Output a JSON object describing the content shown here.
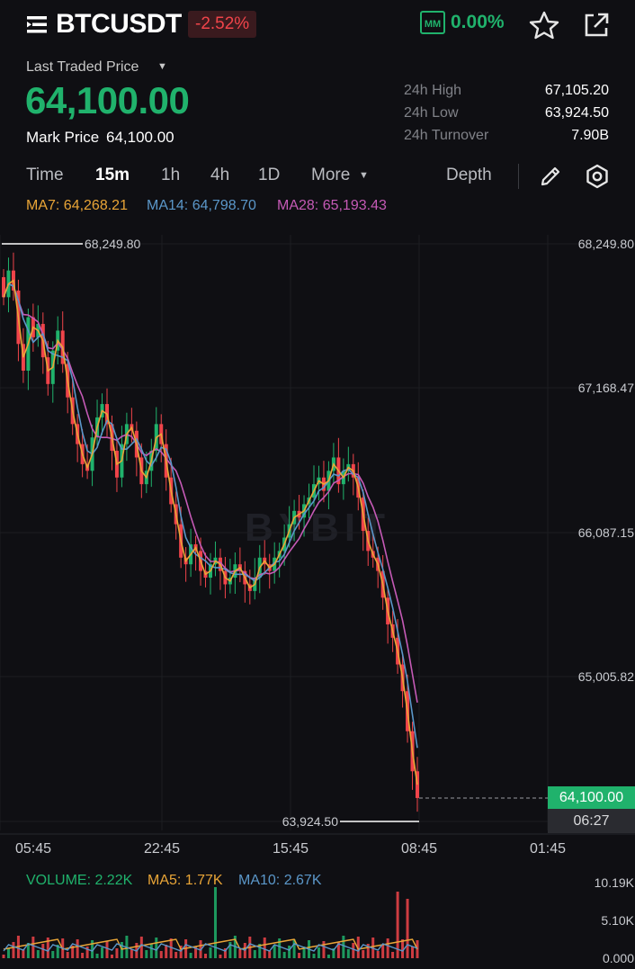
{
  "header": {
    "symbol": "BTCUSDT",
    "change": "-2.52%",
    "mm_badge": "MM",
    "mm_value": "0.00%"
  },
  "price": {
    "last_traded_label": "Last Traded Price",
    "last_price": "64,100.00",
    "mark_label": "Mark Price",
    "mark_value": "64,100.00"
  },
  "stats": [
    {
      "label": "24h High",
      "value": "67,105.20"
    },
    {
      "label": "24h Low",
      "value": "63,924.50"
    },
    {
      "label": "24h Turnover",
      "value": "7.90B"
    }
  ],
  "tabs": {
    "time": "Time",
    "m15": "15m",
    "h1": "1h",
    "h4": "4h",
    "d1": "1D",
    "more": "More",
    "depth": "Depth",
    "active": "15m"
  },
  "ma": {
    "ma7": "MA7: 64,268.21",
    "ma14": "MA14: 64,798.70",
    "ma28": "MA28: 65,193.43"
  },
  "colors": {
    "up": "#20b26c",
    "down": "#f0444a",
    "ma7": "#e9a537",
    "ma14": "#5b97c9",
    "ma28": "#c55ab6"
  },
  "chart_data": {
    "type": "candlestick",
    "price_axis_labels": [
      "68,249.80",
      "67,168.47",
      "66,087.15",
      "65,005.82"
    ],
    "time_axis_labels": [
      "05:45",
      "22:45",
      "15:45",
      "08:45",
      "01:45"
    ],
    "ylim": [
      63924.5,
      68249.8
    ],
    "high_marker": "68,249.80",
    "low_marker": "63,924.50",
    "current_price": "64,100.00",
    "countdown": "06:27",
    "close_series": [
      67850,
      68050,
      67900,
      67500,
      67300,
      67700,
      67550,
      67650,
      67400,
      67200,
      67450,
      67600,
      67350,
      67100,
      66900,
      66750,
      66600,
      66550,
      66800,
      66950,
      67050,
      66900,
      66700,
      66500,
      66750,
      66900,
      66850,
      66650,
      66450,
      66550,
      66700,
      66900,
      66750,
      66500,
      66300,
      66150,
      65900,
      65850,
      66000,
      65950,
      65800,
      65750,
      65850,
      65900,
      65800,
      65700,
      65750,
      65850,
      65800,
      65700,
      65650,
      65750,
      65900,
      65850,
      65800,
      65900,
      65950,
      66050,
      66150,
      66250,
      66200,
      66300,
      66350,
      66450,
      66500,
      66400,
      66550,
      66650,
      66450,
      66550,
      66600,
      66500,
      66350,
      66100,
      65950,
      65900,
      65800,
      65600,
      65400,
      65300,
      65100,
      64900,
      64600,
      64300,
      64100
    ],
    "ma_lines": [
      "MA7",
      "MA14",
      "MA28"
    ],
    "volume": {
      "label": "VOLUME: 2.22K",
      "ma5": "MA5: 1.77K",
      "ma10": "MA10: 2.67K",
      "axis_labels": [
        "10.19K",
        "5.10K",
        "0.000"
      ]
    }
  }
}
